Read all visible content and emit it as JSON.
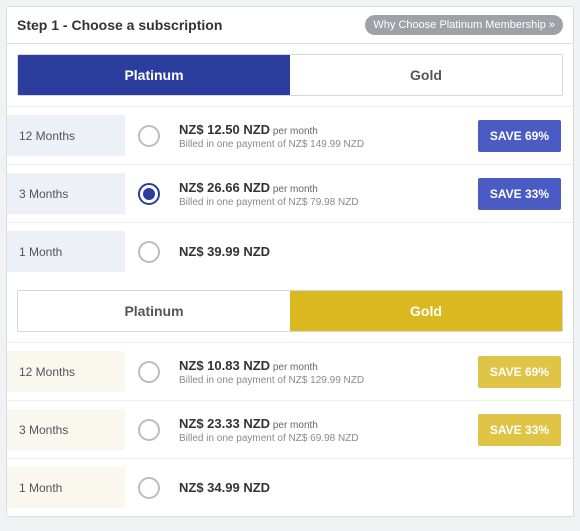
{
  "header": {
    "step_title": "Step 1 - Choose a subscription",
    "why_btn": "Why Choose Platinum Membership »"
  },
  "colors": {
    "platinum_primary": "#2b3e9e",
    "platinum_badge": "#4a5bc4",
    "gold_primary": "#d9b91f",
    "gold_badge": "#e0c445"
  },
  "tiers": [
    {
      "id": "platinum",
      "tabs": {
        "left": "Platinum",
        "right": "Gold",
        "active": "left"
      },
      "rows": [
        {
          "duration": "12 Months",
          "selected": false,
          "price_prefix": "NZ$ ",
          "price_amount": "12.50",
          "price_suffix": " NZD",
          "per_month": "per month",
          "billing": "Billed in one payment of NZ$ 149.99 NZD",
          "save": "SAVE 69%"
        },
        {
          "duration": "3 Months",
          "selected": true,
          "price_prefix": "NZ$ ",
          "price_amount": "26.66",
          "price_suffix": " NZD",
          "per_month": "per month",
          "billing": "Billed in one payment of NZ$ 79.98 NZD",
          "save": "SAVE 33%"
        },
        {
          "duration": "1 Month",
          "selected": false,
          "price_prefix": "NZ$ ",
          "price_amount": "39.99",
          "price_suffix": " NZD",
          "per_month": "",
          "billing": "",
          "save": ""
        }
      ]
    },
    {
      "id": "gold",
      "tabs": {
        "left": "Platinum",
        "right": "Gold",
        "active": "right"
      },
      "rows": [
        {
          "duration": "12 Months",
          "selected": false,
          "price_prefix": "NZ$ ",
          "price_amount": "10.83",
          "price_suffix": " NZD",
          "per_month": "per month",
          "billing": "Billed in one payment of NZ$ 129.99 NZD",
          "save": "SAVE 69%"
        },
        {
          "duration": "3 Months",
          "selected": false,
          "price_prefix": "NZ$ ",
          "price_amount": "23.33",
          "price_suffix": " NZD",
          "per_month": "per month",
          "billing": "Billed in one payment of NZ$ 69.98 NZD",
          "save": "SAVE 33%"
        },
        {
          "duration": "1 Month",
          "selected": false,
          "price_prefix": "NZ$ ",
          "price_amount": "34.99",
          "price_suffix": " NZD",
          "per_month": "",
          "billing": "",
          "save": ""
        }
      ]
    }
  ]
}
